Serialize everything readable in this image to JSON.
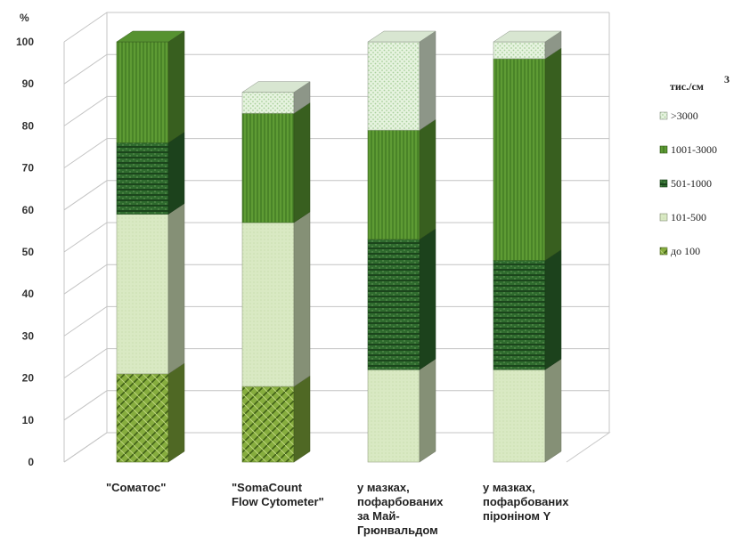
{
  "chart_data": {
    "type": "bar",
    "subtype": "stacked-100-3d",
    "ylabel": "%",
    "ylim": [
      0,
      100
    ],
    "yticks": [
      0,
      10,
      20,
      30,
      40,
      50,
      60,
      70,
      80,
      90,
      100
    ],
    "grid": true,
    "legend_position": "right",
    "legend_title_main": "тис./см",
    "legend_title_sup": "3",
    "categories": [
      [
        "\"Соматос\""
      ],
      [
        "\"SomaCount",
        "Flow Cytometer\""
      ],
      [
        "у мазках,",
        "пофарбованих",
        "за Май-",
        "Грюнвальдом"
      ],
      [
        "у мазках,",
        "пофарбованих",
        "піроніном Y"
      ]
    ],
    "series": [
      {
        "name": "до 100",
        "values": [
          21,
          18,
          0,
          0
        ],
        "color": "#7fa83a",
        "pattern": "weave"
      },
      {
        "name": "101-500",
        "values": [
          38,
          39,
          22,
          22
        ],
        "color": "#d7e8bf",
        "pattern": "light"
      },
      {
        "name": "501-1000",
        "values": [
          17,
          0,
          31,
          26
        ],
        "color": "#2d6b2d",
        "pattern": "dark"
      },
      {
        "name": "1001-3000",
        "values": [
          24,
          26,
          26,
          48
        ],
        "color": "#5b9a32",
        "pattern": "mid"
      },
      {
        "name": ">3000",
        "values": [
          0,
          5,
          21,
          4
        ],
        "color": "#e3f2dc",
        "pattern": "dots"
      }
    ]
  }
}
